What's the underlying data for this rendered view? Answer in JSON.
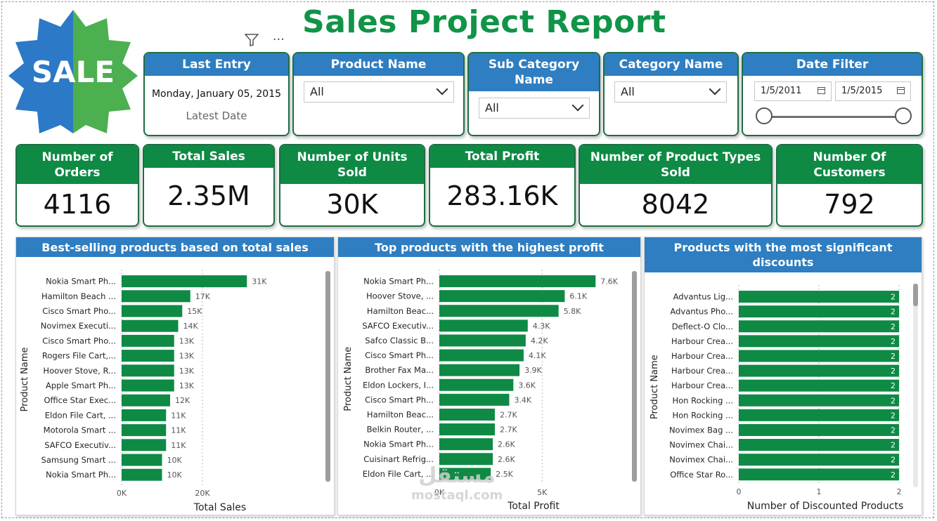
{
  "title": "Sales Project Report",
  "logo_text": "SALE",
  "icons": [
    "filter-icon",
    "more-options-icon"
  ],
  "filters": {
    "last_entry": {
      "label": "Last Entry",
      "value": "Monday, January 05, 2015",
      "caption": "Latest Date"
    },
    "product_name": {
      "label": "Product Name",
      "value": "All"
    },
    "sub_category": {
      "label": "Sub Category Name",
      "value": "All"
    },
    "category": {
      "label": "Category Name",
      "value": "All"
    },
    "date_filter": {
      "label": "Date Filter",
      "start": "1/5/2011",
      "end": "1/5/2015"
    }
  },
  "kpis": [
    {
      "label": "Number of Orders",
      "value": "4116"
    },
    {
      "label": "Total Sales",
      "value": "2.35M"
    },
    {
      "label": "Number of Units Sold",
      "value": "30K"
    },
    {
      "label": "Total Profit",
      "value": "283.16K"
    },
    {
      "label": "Number of Product Types Sold",
      "value": "8042"
    },
    {
      "label": "Number Of Customers",
      "value": "792"
    }
  ],
  "colors": {
    "bar": "#0e8a45",
    "header_blue": "#2e7ec1",
    "kpi_green": "#0e8a45",
    "title_green": "#109447"
  },
  "chart_data": [
    {
      "type": "bar",
      "orientation": "horizontal",
      "title": "Best-selling products based on total sales",
      "xlabel": "Total Sales",
      "ylabel": "Product Name",
      "xlim": [
        0,
        40000
      ],
      "xticks": [
        0,
        20000
      ],
      "xtick_labels": [
        "0K",
        "20K"
      ],
      "categories": [
        "Nokia Smart Ph...",
        "Hamilton Beach ...",
        "Cisco Smart Pho...",
        "Novimex Executi...",
        "Cisco Smart Pho...",
        "Rogers File Cart,...",
        "Hoover Stove, R...",
        "Apple Smart Ph...",
        "Office Star Exec...",
        "Eldon File Cart, ...",
        "Motorola Smart ...",
        "SAFCO Executiv...",
        "Samsung Smart ...",
        "Nokia Smart Ph..."
      ],
      "values": [
        31000,
        17000,
        15000,
        14000,
        13000,
        13000,
        13000,
        13000,
        12000,
        11000,
        11000,
        11000,
        10000,
        10000
      ],
      "data_labels": [
        "31K",
        "17K",
        "15K",
        "14K",
        "13K",
        "13K",
        "13K",
        "13K",
        "12K",
        "11K",
        "11K",
        "11K",
        "10K",
        "10K"
      ]
    },
    {
      "type": "bar",
      "orientation": "horizontal",
      "title": "Top products with the highest profit",
      "xlabel": "Total Profit",
      "ylabel": "Product Name",
      "xlim": [
        0,
        8000
      ],
      "xticks": [
        0,
        5000
      ],
      "xtick_labels": [
        "0K",
        "5K"
      ],
      "categories": [
        "Nokia Smart Ph...",
        "Hoover Stove, ...",
        "Hamilton Beac...",
        "SAFCO Executiv...",
        "Safco Classic B...",
        "Cisco Smart Ph...",
        "Brother Fax Ma...",
        "Eldon Lockers, I...",
        "Cisco Smart Ph...",
        "Hamilton Beac...",
        "Belkin Router, ...",
        "Nokia Smart Ph...",
        "Cuisinart Refrig...",
        "Eldon File Cart, ..."
      ],
      "values": [
        7600,
        6100,
        5800,
        4300,
        4200,
        4100,
        3900,
        3600,
        3400,
        2700,
        2700,
        2600,
        2600,
        2500
      ],
      "data_labels": [
        "7.6K",
        "6.1K",
        "5.8K",
        "4.3K",
        "4.2K",
        "4.1K",
        "3.9K",
        "3.6K",
        "3.4K",
        "2.7K",
        "2.7K",
        "2.6K",
        "2.6K",
        "2.5K"
      ]
    },
    {
      "type": "bar",
      "orientation": "horizontal",
      "title": "Products with the most significant discounts",
      "xlabel": "Number of Discounted Products",
      "ylabel": "Product Name",
      "xlim": [
        0,
        2
      ],
      "xticks": [
        0,
        1,
        2
      ],
      "xtick_labels": [
        "0",
        "1",
        "2"
      ],
      "categories": [
        "Advantus Lig...",
        "Advantus Pho...",
        "Deflect-O Clo...",
        "Harbour Crea...",
        "Harbour Crea...",
        "Harbour Crea...",
        "Harbour Crea...",
        "Hon Rocking ...",
        "Hon Rocking ...",
        "Novimex Bag ...",
        "Novimex Chai...",
        "Novimex Chai...",
        "Office Star Ro..."
      ],
      "values": [
        2,
        2,
        2,
        2,
        2,
        2,
        2,
        2,
        2,
        2,
        2,
        2,
        2
      ],
      "data_labels": [
        "2",
        "2",
        "2",
        "2",
        "2",
        "2",
        "2",
        "2",
        "2",
        "2",
        "2",
        "2",
        "2"
      ]
    }
  ],
  "watermark": {
    "arabic": "مستقل",
    "latin": "mostaql.com"
  }
}
